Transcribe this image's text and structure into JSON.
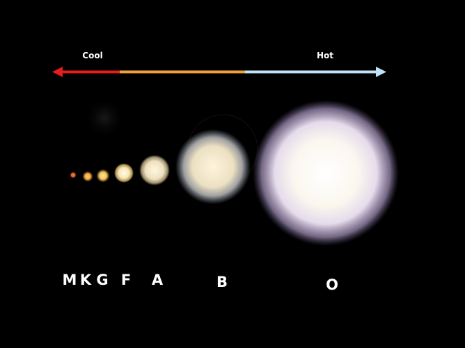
{
  "temperature_scale": {
    "cool_label": "Cool",
    "hot_label": "Hot",
    "colors": {
      "cool": "#e41e1e",
      "mid": "#f2a23a",
      "hot": "#bfe3f7"
    }
  },
  "spectral_classes": [
    {
      "label": "M",
      "color": "#d9602a"
    },
    {
      "label": "K",
      "color": "#f0a640"
    },
    {
      "label": "G",
      "color": "#f2c55a"
    },
    {
      "label": "F",
      "color": "#f5e6b5"
    },
    {
      "label": "A",
      "color": "#eee0bf"
    },
    {
      "label": "B",
      "color": "#ece0c2"
    },
    {
      "label": "O",
      "color": "#fbf7ef"
    }
  ]
}
